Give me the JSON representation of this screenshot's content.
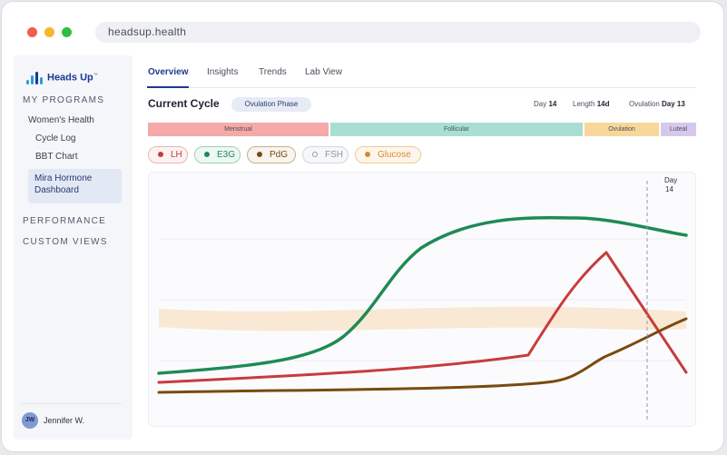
{
  "browser": {
    "url": "headsup.health"
  },
  "sidebar": {
    "logo_text": "Heads Up",
    "logo_mark": "™",
    "my_programs": "MY PROGRAMS",
    "program": "Women's Health",
    "items": [
      "Cycle Log",
      "BBT Chart"
    ],
    "active_item": "Mira Hormone Dashboard",
    "performance": "PERFORMANCE",
    "custom_views": "CUSTOM VIEWS",
    "user": {
      "initials": "JW",
      "name": "Jennifer W."
    }
  },
  "tabs": [
    "Overview",
    "Insights",
    "Trends",
    "Lab View"
  ],
  "cycle": {
    "title": "Current Cycle",
    "phase": "Ovulation Phase",
    "day_label": "Day",
    "day_value": "14",
    "length_label": "Length",
    "length_value": "14d",
    "ovulation_label": "Ovulation",
    "ovulation_value": "Day 13"
  },
  "phases": [
    {
      "label": "Menstrual",
      "color": "#f5a9a9"
    },
    {
      "label": "Follicular",
      "color": "#a8dfd3"
    },
    {
      "label": "Ovulation",
      "color": "#f7d79a"
    },
    {
      "label": "Luteal",
      "color": "#d6c8ec"
    }
  ],
  "hormones": [
    {
      "label": "LH",
      "color": "#c73c3c"
    },
    {
      "label": "E3G",
      "color": "#1f8a55"
    },
    {
      "label": "PdG",
      "color": "#7a4a12"
    },
    {
      "label": "FSH",
      "color": "#8e96a6"
    },
    {
      "label": "Glucose",
      "color": "#d98a2b"
    }
  ],
  "chart": {
    "marker_line1": "Day",
    "marker_line2": "14"
  }
}
